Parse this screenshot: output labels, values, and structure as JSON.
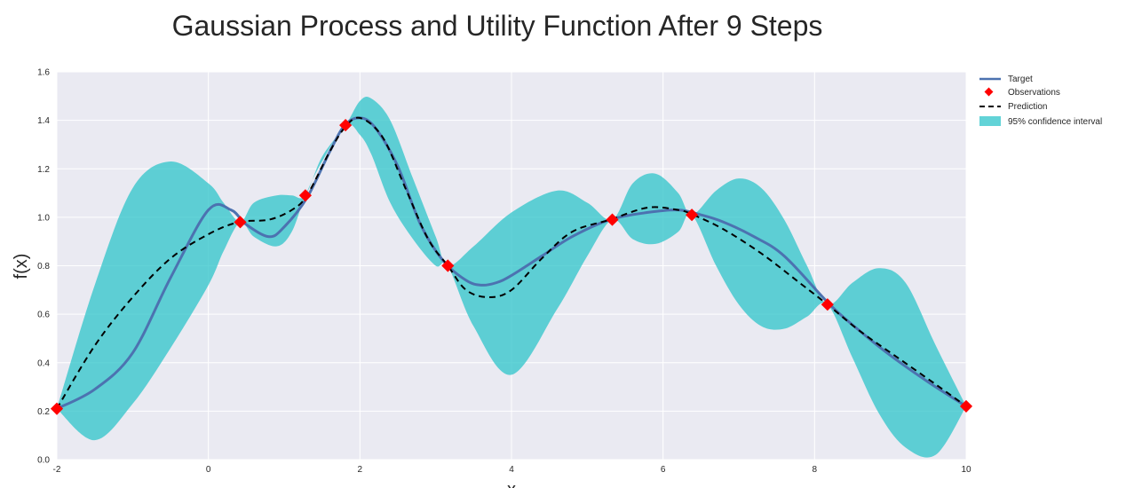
{
  "chart_data": {
    "type": "line",
    "title": "Gaussian Process and Utility Function After 9 Steps",
    "xlabel": "x",
    "ylabel": "f(x)",
    "xlim": [
      -2,
      10
    ],
    "ylim": [
      0.0,
      1.6
    ],
    "xticks": [
      "-2",
      "0",
      "2",
      "4",
      "6",
      "8",
      "10"
    ],
    "yticks": [
      "0.0",
      "0.2",
      "0.4",
      "0.6",
      "0.8",
      "1.0",
      "1.2",
      "1.4",
      "1.6"
    ],
    "grid": true,
    "legend_position": "outside top-right",
    "series": [
      {
        "name": "Target",
        "kind": "line",
        "color": "#4c72b0",
        "x": [
          -2,
          -1.5,
          -1,
          -0.5,
          0,
          0.3,
          0.5,
          0.8,
          1.0,
          1.3,
          1.6,
          1.8,
          2.0,
          2.2,
          2.5,
          2.8,
          3.1,
          3.4,
          3.6,
          3.8,
          4.0,
          4.4,
          4.8,
          5.3,
          5.8,
          6.2,
          6.5,
          6.8,
          7.2,
          7.6,
          8.2,
          8.6,
          9.0,
          9.5,
          10
        ],
        "y": [
          0.21,
          0.29,
          0.44,
          0.75,
          1.03,
          1.03,
          0.97,
          0.92,
          0.96,
          1.08,
          1.27,
          1.38,
          1.41,
          1.37,
          1.21,
          0.97,
          0.82,
          0.74,
          0.72,
          0.73,
          0.76,
          0.84,
          0.92,
          0.99,
          1.02,
          1.03,
          1.01,
          0.98,
          0.92,
          0.84,
          0.64,
          0.53,
          0.43,
          0.32,
          0.22
        ]
      },
      {
        "name": "Prediction",
        "kind": "dashed",
        "color": "#000000",
        "x": [
          -2,
          -1.5,
          -1,
          -0.5,
          0,
          0.4,
          0.8,
          1.1,
          1.3,
          1.6,
          1.8,
          2.0,
          2.3,
          2.6,
          2.9,
          3.16,
          3.4,
          3.7,
          4.0,
          4.4,
          4.8,
          5.3,
          5.8,
          6.2,
          6.4,
          6.8,
          7.3,
          7.8,
          8.17,
          8.6,
          9.1,
          9.6,
          10
        ],
        "y": [
          0.21,
          0.47,
          0.67,
          0.83,
          0.93,
          0.98,
          0.99,
          1.03,
          1.09,
          1.27,
          1.37,
          1.41,
          1.33,
          1.12,
          0.91,
          0.8,
          0.7,
          0.67,
          0.7,
          0.83,
          0.94,
          0.99,
          1.04,
          1.03,
          1.01,
          0.95,
          0.85,
          0.73,
          0.64,
          0.53,
          0.42,
          0.31,
          0.22
        ]
      },
      {
        "name": "Observations",
        "kind": "marker",
        "color": "#ff0000",
        "x": [
          -2,
          0.42,
          1.28,
          1.81,
          3.16,
          5.33,
          6.38,
          8.17,
          10
        ],
        "y": [
          0.21,
          0.98,
          1.09,
          1.38,
          0.8,
          0.99,
          1.01,
          0.64,
          0.22
        ]
      },
      {
        "name": "95% confidence interval",
        "kind": "band",
        "color": "#2ec4c9",
        "x": [
          -2,
          -1.5,
          -1,
          -0.5,
          0,
          0.2,
          0.42,
          0.6,
          0.9,
          1.1,
          1.28,
          1.5,
          1.81,
          2.0,
          2.15,
          2.4,
          2.7,
          3.0,
          3.16,
          3.5,
          4.0,
          4.6,
          5.0,
          5.33,
          5.6,
          5.9,
          6.2,
          6.38,
          6.7,
          7.0,
          7.3,
          7.6,
          7.9,
          8.17,
          8.5,
          8.85,
          9.2,
          9.6,
          10
        ],
        "upper": [
          0.21,
          0.72,
          1.12,
          1.23,
          1.14,
          1.06,
          0.98,
          1.06,
          1.09,
          1.09,
          1.09,
          1.25,
          1.38,
          1.48,
          1.49,
          1.4,
          1.16,
          0.92,
          0.8,
          0.88,
          1.02,
          1.11,
          1.06,
          0.99,
          1.14,
          1.18,
          1.1,
          1.01,
          1.11,
          1.16,
          1.12,
          0.99,
          0.8,
          0.64,
          0.73,
          0.79,
          0.73,
          0.47,
          0.22
        ],
        "lower": [
          0.21,
          0.08,
          0.23,
          0.46,
          0.72,
          0.86,
          0.98,
          0.92,
          0.88,
          0.94,
          1.09,
          1.23,
          1.38,
          1.34,
          1.26,
          1.06,
          0.91,
          0.8,
          0.8,
          0.55,
          0.35,
          0.62,
          0.84,
          0.99,
          0.91,
          0.89,
          0.94,
          1.01,
          0.8,
          0.64,
          0.55,
          0.54,
          0.59,
          0.64,
          0.42,
          0.19,
          0.05,
          0.02,
          0.22
        ]
      }
    ]
  }
}
